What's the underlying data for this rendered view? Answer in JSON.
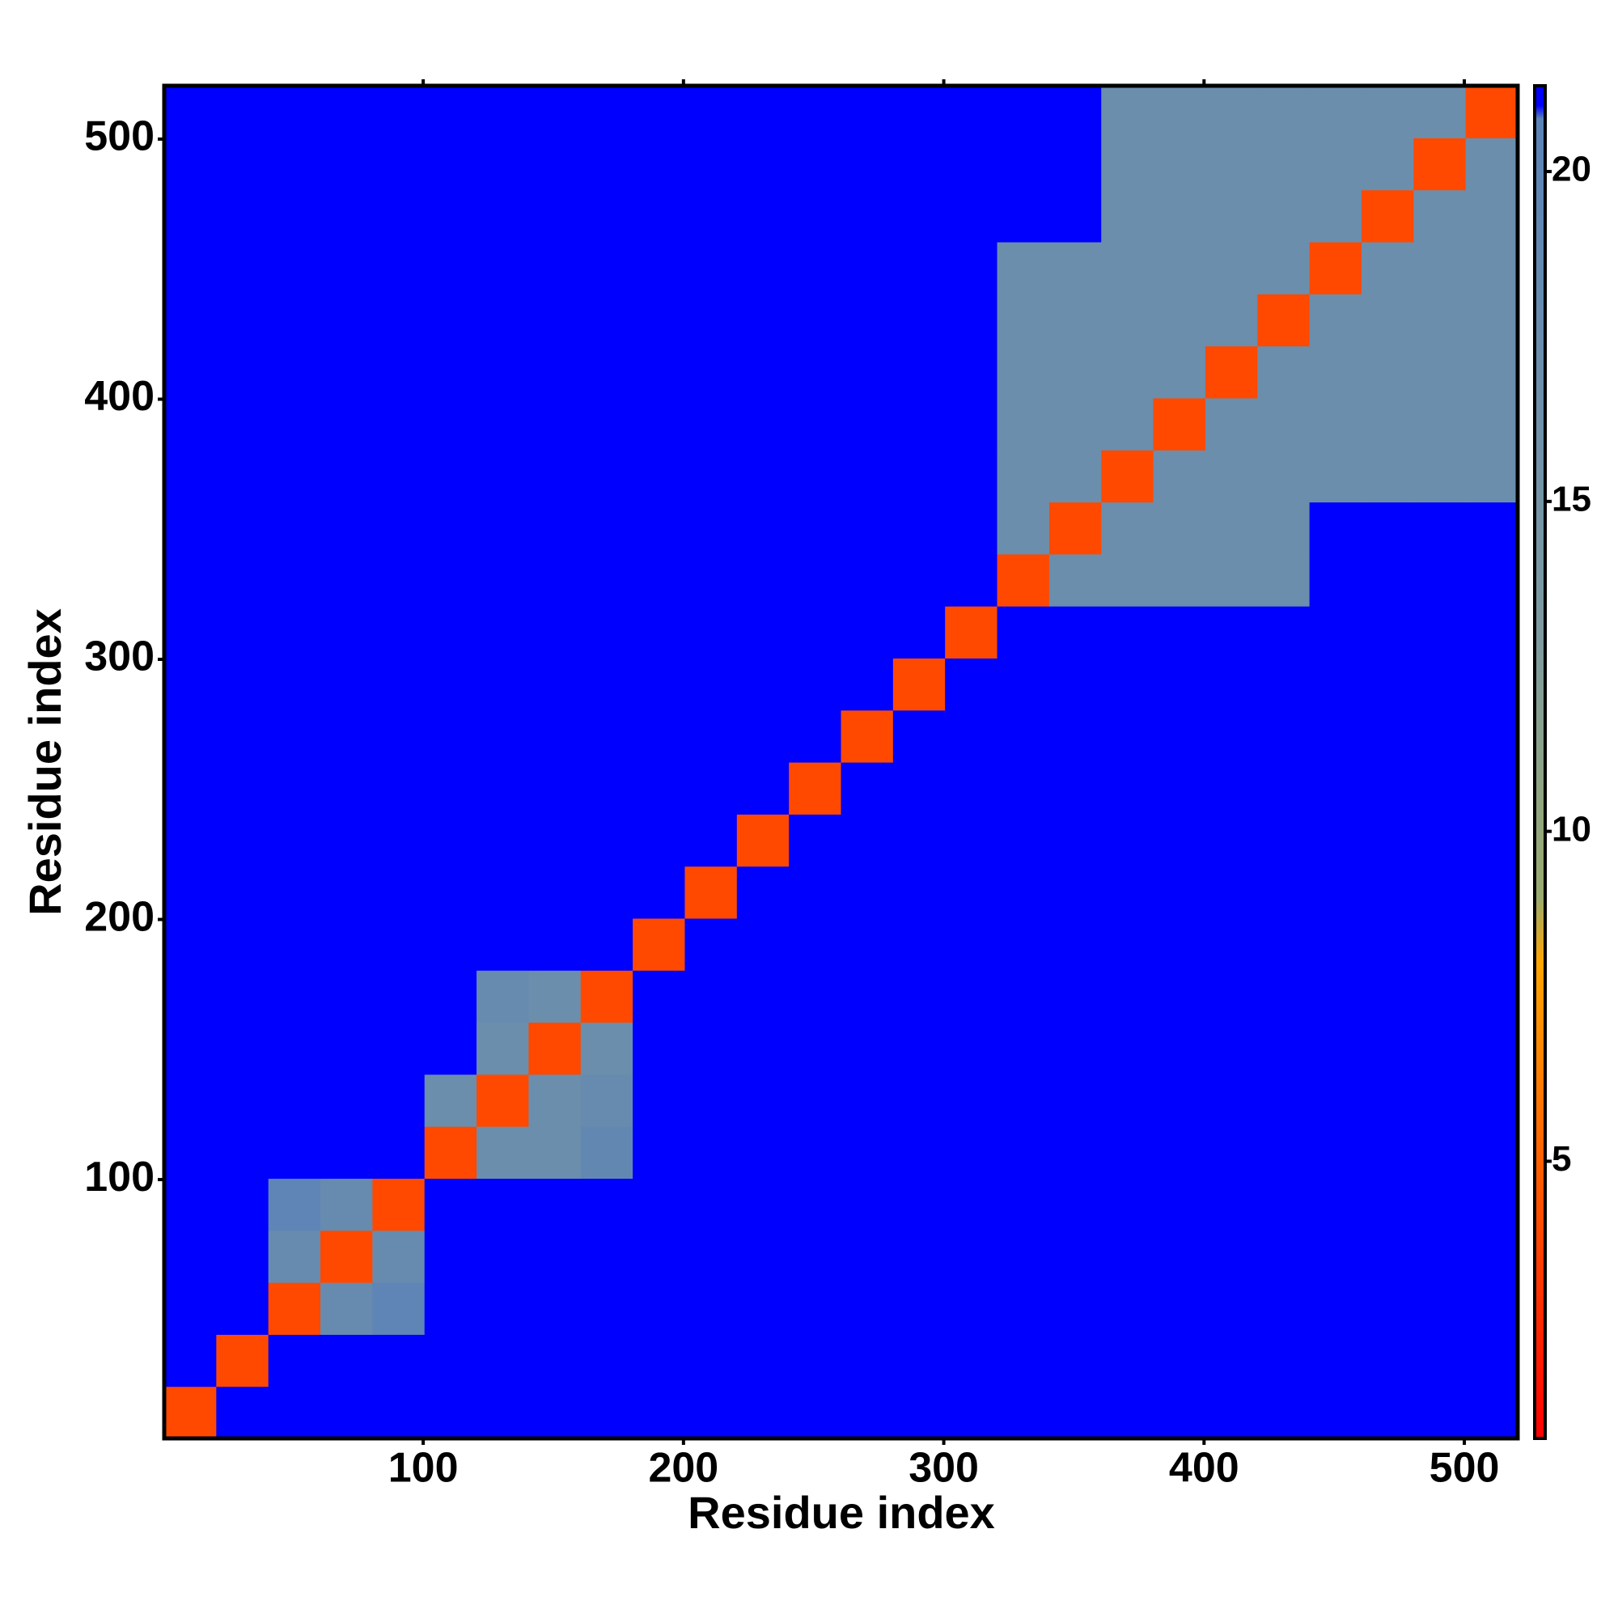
{
  "chart_data": {
    "type": "heatmap",
    "xlabel": "Residue index",
    "ylabel": "Residue index",
    "bins": [
      0.5,
      20.5,
      40.5,
      60.5,
      80.5,
      100.5,
      120.5,
      140.5,
      160.5,
      180.5,
      200.5,
      220.5,
      240.5,
      260.5,
      280.5,
      300.5,
      320.5,
      340.5,
      360.5,
      380.5,
      400.5,
      420.5,
      440.5,
      460.5,
      480.5,
      500.5,
      520.5
    ],
    "xlim": [
      0.5,
      520.5
    ],
    "ylim": [
      0.5,
      520.5
    ],
    "xticks": [
      100,
      200,
      300,
      400,
      500
    ],
    "yticks": [
      100,
      200,
      300,
      400,
      500
    ],
    "zlim": [
      0.8,
      21.3
    ],
    "zticks": [
      5,
      10,
      15,
      20
    ],
    "colorscale": [
      {
        "value": 0.8,
        "color": "#ff0000"
      },
      {
        "value": 8,
        "color": "#ffa500"
      },
      {
        "value": 9,
        "color": "#9aab6e"
      },
      {
        "value": 13,
        "color": "#7d9aa0"
      },
      {
        "value": 20.8,
        "color": "#5a83b8"
      },
      {
        "value": 21,
        "color": "#0000ff"
      }
    ],
    "z": [
      [
        4,
        21,
        21,
        21,
        21,
        21,
        21,
        21,
        21,
        21,
        21,
        21,
        21,
        21,
        21,
        21,
        21,
        21,
        21,
        21,
        21,
        21,
        21,
        21,
        21,
        21
      ],
      [
        21,
        4,
        21,
        21,
        21,
        21,
        21,
        21,
        21,
        21,
        21,
        21,
        21,
        21,
        21,
        21,
        21,
        21,
        21,
        21,
        21,
        21,
        21,
        21,
        21,
        21
      ],
      [
        21,
        21,
        4,
        18,
        20,
        21,
        21,
        21,
        21,
        21,
        21,
        21,
        21,
        21,
        21,
        21,
        21,
        21,
        21,
        21,
        21,
        21,
        21,
        21,
        21,
        21
      ],
      [
        21,
        21,
        18,
        4,
        18,
        21,
        21,
        21,
        21,
        21,
        21,
        21,
        21,
        21,
        21,
        21,
        21,
        21,
        21,
        21,
        21,
        21,
        21,
        21,
        21,
        21
      ],
      [
        21,
        21,
        20,
        18,
        4,
        21,
        21,
        21,
        21,
        21,
        21,
        21,
        21,
        21,
        21,
        21,
        21,
        21,
        21,
        21,
        21,
        21,
        21,
        21,
        21,
        21
      ],
      [
        21,
        21,
        21,
        21,
        21,
        4,
        17,
        17,
        19,
        21,
        21,
        21,
        21,
        21,
        21,
        21,
        21,
        21,
        21,
        21,
        21,
        21,
        21,
        21,
        21,
        21
      ],
      [
        21,
        21,
        21,
        21,
        21,
        17,
        4,
        17,
        18,
        21,
        21,
        21,
        21,
        21,
        21,
        21,
        21,
        21,
        21,
        21,
        21,
        21,
        21,
        21,
        21,
        21
      ],
      [
        21,
        21,
        21,
        21,
        21,
        21,
        17,
        4,
        17,
        21,
        21,
        21,
        21,
        21,
        21,
        21,
        21,
        21,
        21,
        21,
        21,
        21,
        21,
        21,
        21,
        21
      ],
      [
        21,
        21,
        21,
        21,
        21,
        21,
        18,
        17,
        4,
        21,
        21,
        21,
        21,
        21,
        21,
        21,
        21,
        21,
        21,
        21,
        21,
        21,
        21,
        21,
        21,
        21
      ],
      [
        21,
        21,
        21,
        21,
        21,
        21,
        21,
        21,
        21,
        4,
        21,
        21,
        21,
        21,
        21,
        21,
        21,
        21,
        21,
        21,
        21,
        21,
        21,
        21,
        21,
        21
      ],
      [
        21,
        21,
        21,
        21,
        21,
        21,
        21,
        21,
        21,
        21,
        4,
        21,
        21,
        21,
        21,
        21,
        21,
        21,
        21,
        21,
        21,
        21,
        21,
        21,
        21,
        21
      ],
      [
        21,
        21,
        21,
        21,
        21,
        21,
        21,
        21,
        21,
        21,
        21,
        4,
        21,
        21,
        21,
        21,
        21,
        21,
        21,
        21,
        21,
        21,
        21,
        21,
        21,
        21
      ],
      [
        21,
        21,
        21,
        21,
        21,
        21,
        21,
        21,
        21,
        21,
        21,
        21,
        4,
        21,
        21,
        21,
        21,
        21,
        21,
        21,
        21,
        21,
        21,
        21,
        21,
        21
      ],
      [
        21,
        21,
        21,
        21,
        21,
        21,
        21,
        21,
        21,
        21,
        21,
        21,
        21,
        4,
        21,
        21,
        21,
        21,
        21,
        21,
        21,
        21,
        21,
        21,
        21,
        21
      ],
      [
        21,
        21,
        21,
        21,
        21,
        21,
        21,
        21,
        21,
        21,
        21,
        21,
        21,
        21,
        4,
        21,
        21,
        21,
        21,
        21,
        21,
        21,
        21,
        21,
        21,
        21
      ],
      [
        21,
        21,
        21,
        21,
        21,
        21,
        21,
        21,
        21,
        21,
        21,
        21,
        21,
        21,
        21,
        4,
        21,
        21,
        21,
        21,
        21,
        21,
        21,
        21,
        21,
        21
      ],
      [
        21,
        21,
        21,
        21,
        21,
        21,
        21,
        21,
        21,
        21,
        21,
        21,
        21,
        21,
        21,
        21,
        4,
        17,
        17,
        17,
        17,
        17,
        21,
        21,
        21,
        21
      ],
      [
        21,
        21,
        21,
        21,
        21,
        21,
        21,
        21,
        21,
        21,
        21,
        21,
        21,
        21,
        21,
        21,
        17,
        4,
        17,
        17,
        17,
        17,
        21,
        21,
        21,
        21
      ],
      [
        21,
        21,
        21,
        21,
        21,
        21,
        21,
        21,
        21,
        21,
        21,
        21,
        21,
        21,
        21,
        21,
        17,
        17,
        4,
        17,
        17,
        17,
        17,
        17,
        17,
        17
      ],
      [
        21,
        21,
        21,
        21,
        21,
        21,
        21,
        21,
        21,
        21,
        21,
        21,
        21,
        21,
        21,
        21,
        17,
        17,
        17,
        4,
        17,
        17,
        17,
        17,
        17,
        17
      ],
      [
        21,
        21,
        21,
        21,
        21,
        21,
        21,
        21,
        21,
        21,
        21,
        21,
        21,
        21,
        21,
        21,
        17,
        17,
        17,
        17,
        4,
        17,
        17,
        17,
        17,
        17
      ],
      [
        21,
        21,
        21,
        21,
        21,
        21,
        21,
        21,
        21,
        21,
        21,
        21,
        21,
        21,
        21,
        21,
        17,
        17,
        17,
        17,
        17,
        4,
        17,
        17,
        17,
        17
      ],
      [
        21,
        21,
        21,
        21,
        21,
        21,
        21,
        21,
        21,
        21,
        21,
        21,
        21,
        21,
        21,
        21,
        17,
        17,
        17,
        17,
        17,
        17,
        4,
        17,
        17,
        17
      ],
      [
        21,
        21,
        21,
        21,
        21,
        21,
        21,
        21,
        21,
        21,
        21,
        21,
        21,
        21,
        21,
        21,
        21,
        21,
        17,
        17,
        17,
        17,
        17,
        4,
        17,
        17
      ],
      [
        21,
        21,
        21,
        21,
        21,
        21,
        21,
        21,
        21,
        21,
        21,
        21,
        21,
        21,
        21,
        21,
        21,
        21,
        17,
        17,
        17,
        17,
        17,
        17,
        4,
        17
      ],
      [
        21,
        21,
        21,
        21,
        21,
        21,
        21,
        21,
        21,
        21,
        21,
        21,
        21,
        21,
        21,
        21,
        21,
        21,
        17,
        17,
        17,
        17,
        17,
        17,
        17,
        4
      ]
    ]
  }
}
